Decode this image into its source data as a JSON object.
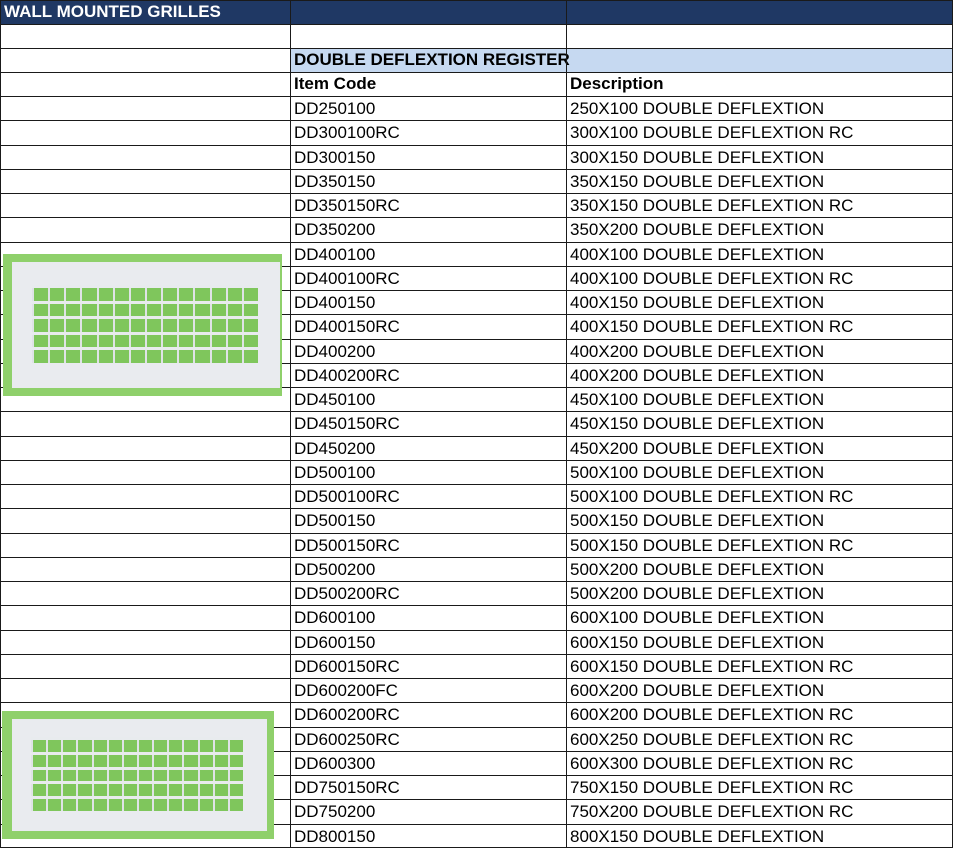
{
  "sheet_title": "WALL MOUNTED GRILLES",
  "section_title": "DOUBLE DEFLEXTION REGISTER",
  "columns": {
    "code": "Item Code",
    "description": "Description"
  },
  "colors": {
    "title_bar": "#1f3864",
    "section_band": "#c6d9f1",
    "photo_background": "#8fd06b"
  },
  "rows": [
    [
      "DD250100",
      "250X100 DOUBLE DEFLEXTION"
    ],
    [
      "DD300100RC",
      "300X100 DOUBLE DEFLEXTION RC"
    ],
    [
      "DD300150",
      "300X150 DOUBLE DEFLEXTION"
    ],
    [
      "DD350150",
      "350X150 DOUBLE DEFLEXTION"
    ],
    [
      "DD350150RC",
      "350X150 DOUBLE DEFLEXTION RC"
    ],
    [
      "DD350200",
      "350X200 DOUBLE DEFLEXTION"
    ],
    [
      "DD400100",
      "400X100 DOUBLE DEFLEXTION"
    ],
    [
      "DD400100RC",
      "400X100 DOUBLE DEFLEXTION RC"
    ],
    [
      "DD400150",
      "400X150 DOUBLE DEFLEXTION"
    ],
    [
      "DD400150RC",
      "400X150 DOUBLE DEFLEXTION RC"
    ],
    [
      "DD400200",
      "400X200 DOUBLE DEFLEXTION"
    ],
    [
      "DD400200RC",
      "400X200 DOUBLE DEFLEXTION"
    ],
    [
      "DD450100",
      "450X100 DOUBLE DEFLEXTION"
    ],
    [
      "DD450150RC",
      "450X150 DOUBLE DEFLEXTION"
    ],
    [
      "DD450200",
      "450X200 DOUBLE DEFLEXTION"
    ],
    [
      "DD500100",
      "500X100 DOUBLE DEFLEXTION"
    ],
    [
      "DD500100RC",
      "500X100 DOUBLE DEFLEXTION RC"
    ],
    [
      "DD500150",
      "500X150 DOUBLE DEFLEXTION"
    ],
    [
      "DD500150RC",
      "500X150 DOUBLE DEFLEXTION RC"
    ],
    [
      "DD500200",
      "500X200 DOUBLE DEFLEXTION"
    ],
    [
      "DD500200RC",
      "500X200 DOUBLE DEFLEXTION"
    ],
    [
      "DD600100",
      "600X100 DOUBLE DEFLEXTION"
    ],
    [
      "DD600150",
      "600X150 DOUBLE DEFLEXTION"
    ],
    [
      "DD600150RC",
      "600X150 DOUBLE DEFLEXTION RC"
    ],
    [
      "DD600200FC",
      "600X200 DOUBLE DEFLEXTION"
    ],
    [
      "DD600200RC",
      "600X200 DOUBLE DEFLEXTION RC"
    ],
    [
      "DD600250RC",
      "600X250 DOUBLE DEFLEXTION RC"
    ],
    [
      "DD600300",
      "600X300 DOUBLE DEFLEXTION RC"
    ],
    [
      "DD750150RC",
      "750X150 DOUBLE DEFLEXTION RC"
    ],
    [
      "DD750200",
      "750X200 DOUBLE DEFLEXTION RC"
    ],
    [
      "DD800150",
      "800X150 DOUBLE DEFLEXTION"
    ]
  ]
}
